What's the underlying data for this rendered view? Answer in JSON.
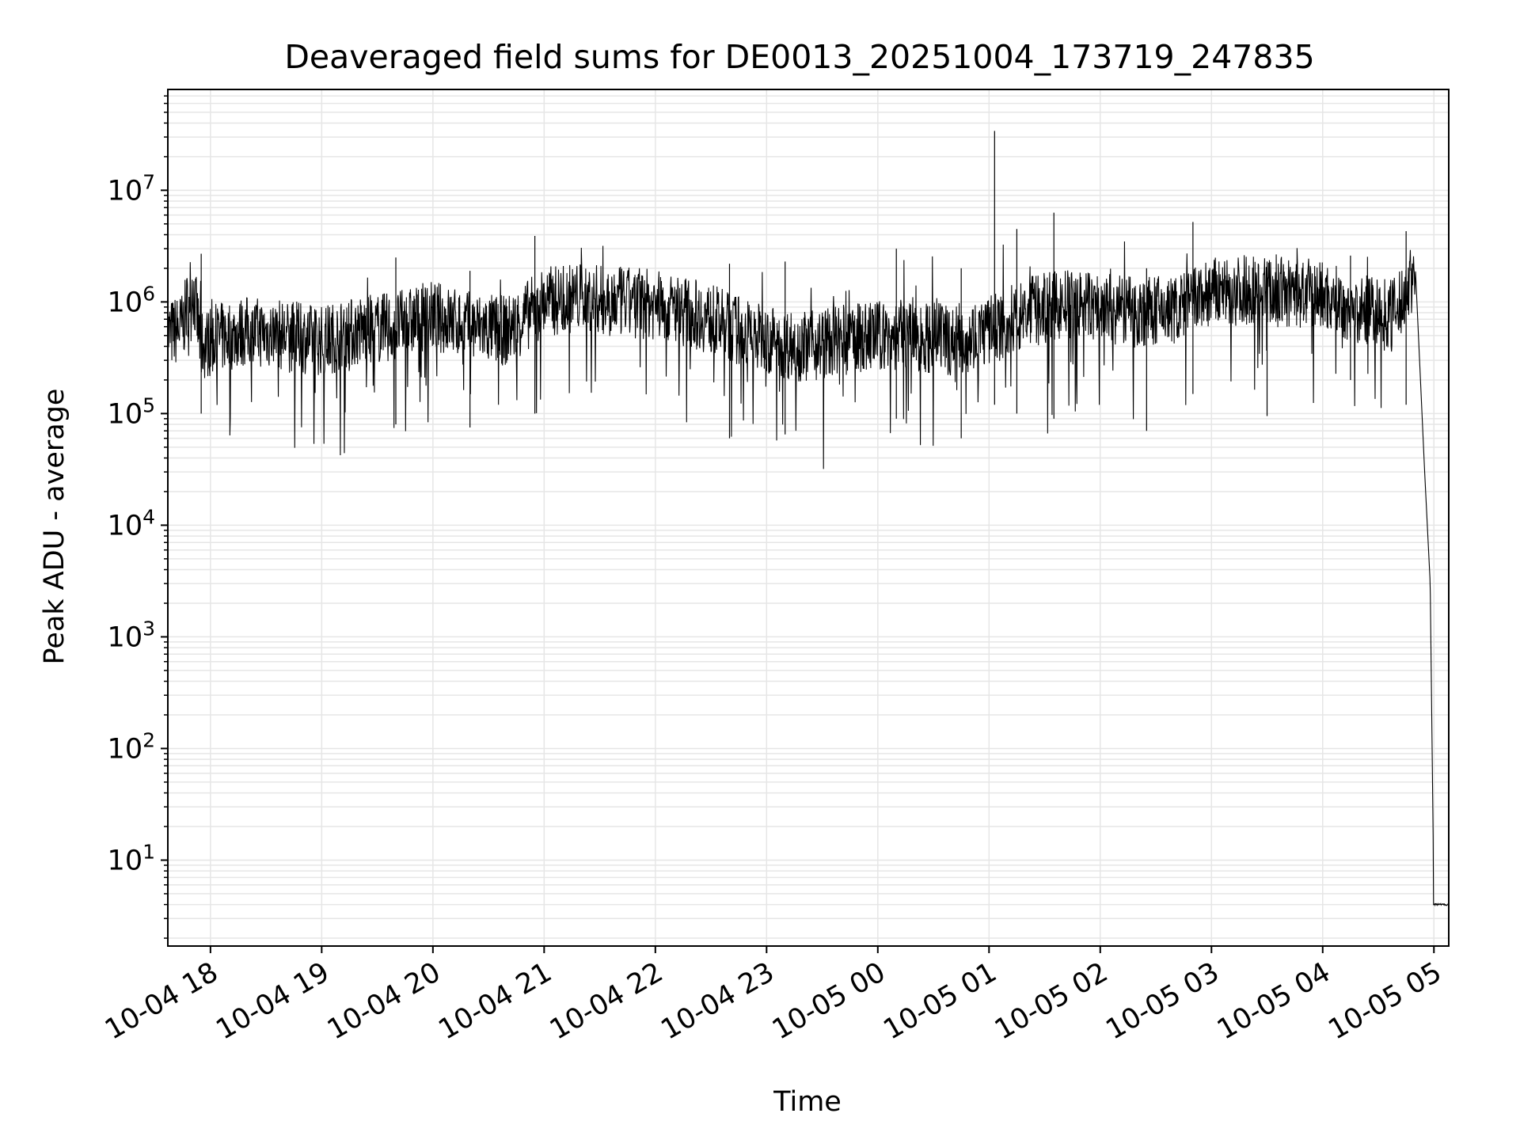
{
  "chart_data": {
    "type": "line",
    "title": "Deaveraged field sums for DE0013_20251004_173719_247835",
    "xlabel": "Time",
    "ylabel": "Peak ADU - average",
    "yscale": "log",
    "grid": true,
    "line_color": "#000000",
    "grid_color": "#e6e6e6",
    "xlim": [
      "2025-10-04 17:37",
      "2025-10-05 05:08"
    ],
    "ylim": [
      1.7,
      80000000
    ],
    "x_ticks": [
      {
        "t": "2025-10-04 18:00",
        "label": "10-04 18"
      },
      {
        "t": "2025-10-04 19:00",
        "label": "10-04 19"
      },
      {
        "t": "2025-10-04 20:00",
        "label": "10-04 20"
      },
      {
        "t": "2025-10-04 21:00",
        "label": "10-04 21"
      },
      {
        "t": "2025-10-04 22:00",
        "label": "10-04 22"
      },
      {
        "t": "2025-10-04 23:00",
        "label": "10-04 23"
      },
      {
        "t": "2025-10-05 00:00",
        "label": "10-05 00"
      },
      {
        "t": "2025-10-05 01:00",
        "label": "10-05 01"
      },
      {
        "t": "2025-10-05 02:00",
        "label": "10-05 02"
      },
      {
        "t": "2025-10-05 03:00",
        "label": "10-05 03"
      },
      {
        "t": "2025-10-05 04:00",
        "label": "10-05 04"
      },
      {
        "t": "2025-10-05 05:00",
        "label": "10-05 05"
      }
    ],
    "y_ticks": [
      {
        "value": 10,
        "base": "10",
        "exp": "1"
      },
      {
        "value": 100,
        "base": "10",
        "exp": "2"
      },
      {
        "value": 1000,
        "base": "10",
        "exp": "3"
      },
      {
        "value": 10000,
        "base": "10",
        "exp": "4"
      },
      {
        "value": 100000,
        "base": "10",
        "exp": "5"
      },
      {
        "value": 1000000,
        "base": "10",
        "exp": "6"
      },
      {
        "value": 10000000,
        "base": "10",
        "exp": "7"
      }
    ],
    "series": [
      {
        "x": [
          "2025-10-04 17:37",
          "2025-10-04 17:45",
          "2025-10-04 17:50",
          "2025-10-04 17:55",
          "2025-10-04 18:00",
          "2025-10-04 18:20",
          "2025-10-04 18:40",
          "2025-10-04 19:00",
          "2025-10-04 19:20",
          "2025-10-04 19:40",
          "2025-10-04 20:00",
          "2025-10-04 20:20",
          "2025-10-04 20:40",
          "2025-10-04 21:00",
          "2025-10-04 21:20",
          "2025-10-04 21:40",
          "2025-10-04 22:00",
          "2025-10-04 22:20",
          "2025-10-04 22:40",
          "2025-10-04 23:00",
          "2025-10-04 23:20",
          "2025-10-04 23:40",
          "2025-10-05 00:00",
          "2025-10-05 00:20",
          "2025-10-05 00:40",
          "2025-10-05 01:00",
          "2025-10-05 01:20",
          "2025-10-05 01:40",
          "2025-10-05 02:00",
          "2025-10-05 02:20",
          "2025-10-05 02:40",
          "2025-10-05 03:00",
          "2025-10-05 03:20",
          "2025-10-05 03:40",
          "2025-10-05 04:00",
          "2025-10-05 04:20",
          "2025-10-05 04:40",
          "2025-10-05 04:50",
          "2025-10-05 04:55",
          "2025-10-05 04:58",
          "2025-10-05 05:00",
          "2025-10-05 05:08"
        ],
        "y": [
          500000,
          600000,
          1500000,
          400000,
          450000,
          550000,
          500000,
          450000,
          550000,
          600000,
          750000,
          600000,
          550000,
          1000000,
          1100000,
          1000000,
          950000,
          800000,
          600000,
          450000,
          400000,
          450000,
          500000,
          500000,
          450000,
          550000,
          800000,
          950000,
          900000,
          800000,
          850000,
          1200000,
          1300000,
          1200000,
          1150000,
          850000,
          800000,
          2000000,
          30000,
          3000,
          4,
          4
        ],
        "spikes": [
          {
            "x": "2025-10-04 17:55",
            "y": 2700000,
            "low": 100000
          },
          {
            "x": "2025-10-04 19:40",
            "y": 2500000,
            "low": 80000
          },
          {
            "x": "2025-10-04 20:20",
            "y": 1900000,
            "low": 75000
          },
          {
            "x": "2025-10-04 20:55",
            "y": 3900000,
            "low": 100000
          },
          {
            "x": "2025-10-04 22:40",
            "y": 2200000,
            "low": 60000
          },
          {
            "x": "2025-10-04 23:10",
            "y": 2300000,
            "low": 65000
          },
          {
            "x": "2025-10-05 00:10",
            "y": 3000000,
            "low": 90000
          },
          {
            "x": "2025-10-05 00:45",
            "y": 2000000,
            "low": 60000
          },
          {
            "x": "2025-10-05 01:03",
            "y": 34000000,
            "low": 120000
          },
          {
            "x": "2025-10-05 01:15",
            "y": 4500000,
            "low": 100000
          },
          {
            "x": "2025-10-05 01:35",
            "y": 6300000,
            "low": 90000
          },
          {
            "x": "2025-10-05 02:25",
            "y": 2000000,
            "low": 70000
          },
          {
            "x": "2025-10-05 02:50",
            "y": 5200000,
            "low": 150000
          },
          {
            "x": "2025-10-05 03:30",
            "y": 2300000,
            "low": 95000
          },
          {
            "x": "2025-10-05 04:15",
            "y": 2600000,
            "low": 200000
          },
          {
            "x": "2025-10-05 04:45",
            "y": 4300000,
            "low": 120000
          }
        ]
      }
    ]
  }
}
